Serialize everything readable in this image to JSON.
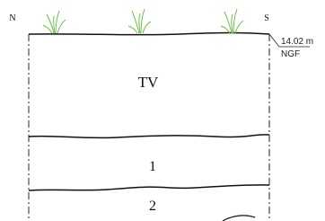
{
  "orientation": {
    "left": "N",
    "right": "S"
  },
  "elevation": {
    "value": "14.02 m",
    "datum": "NGF"
  },
  "layers": [
    {
      "label": "TV"
    },
    {
      "label": "1"
    },
    {
      "label": "2"
    }
  ]
}
